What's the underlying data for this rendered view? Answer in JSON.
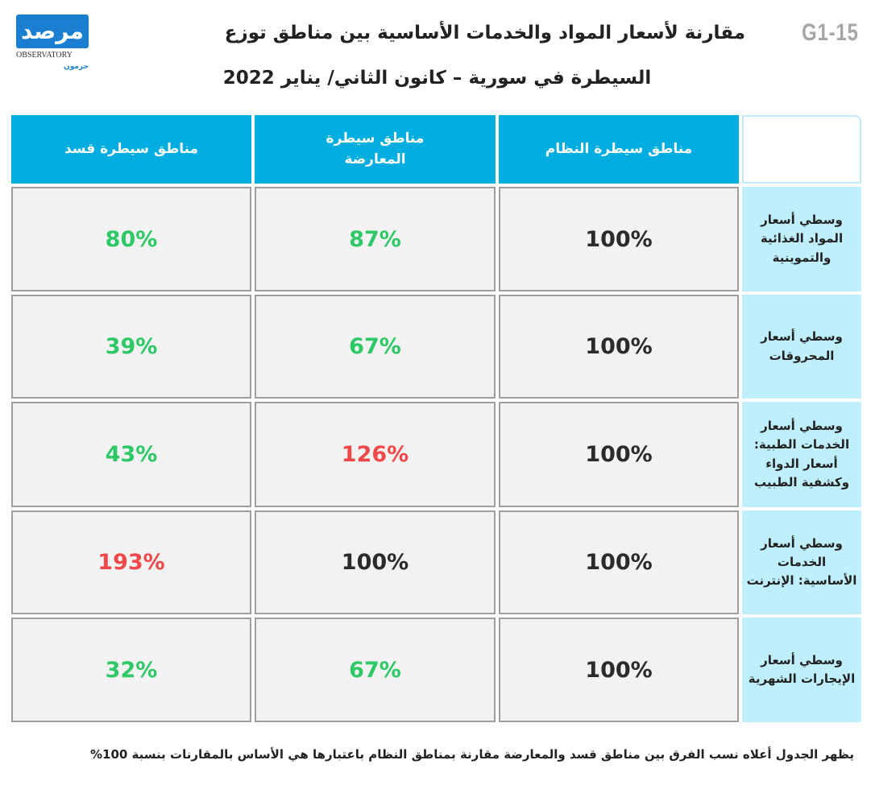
{
  "code": "G1-15",
  "title_line1": "مقارنة لأسعار المواد والخدمات الأساسية بين مناطق توزع",
  "title_line2": "السيطرة في سورية – كانون الثاني/ يناير 2022",
  "logo": {
    "arabic": "مرصد",
    "english": "OBSERVATORY",
    "sub": "حرمون"
  },
  "colors": {
    "header": "#00ade0",
    "row_label": "#bfeefc",
    "lower": "#2ec866",
    "higher": "#f04848"
  },
  "table": {
    "headers": [
      "مناطق سيطرة النظام",
      "مناطق سيطرة المعارضة",
      "مناطق سيطرة قسد"
    ],
    "rows": [
      {
        "label": "وسطي أسعار المواد الغذائية والتموينية",
        "regime": "100%",
        "opposition": "87%",
        "opposition_class": "green",
        "sdf": "80%",
        "sdf_class": "green"
      },
      {
        "label": "وسطي أسعار المحروقات",
        "regime": "100%",
        "opposition": "67%",
        "opposition_class": "green",
        "sdf": "39%",
        "sdf_class": "green"
      },
      {
        "label": "وسطي أسعار الخدمات الطبية: أسعار الدواء وكشفية الطبيب",
        "regime": "100%",
        "opposition": "126%",
        "opposition_class": "red",
        "sdf": "43%",
        "sdf_class": "green"
      },
      {
        "label": "وسطي أسعار الخدمات الأساسية: الإنترنت",
        "regime": "100%",
        "opposition": "100%",
        "opposition_class": "",
        "sdf": "193%",
        "sdf_class": "red"
      },
      {
        "label": "وسطي أسعار الإيجارات الشهرية",
        "regime": "100%",
        "opposition": "67%",
        "opposition_class": "green",
        "sdf": "32%",
        "sdf_class": "green"
      }
    ]
  },
  "footnote": "يظهر الجدول أعلاه نسب الفرق بين مناطق قسد والمعارضة مقارنة بمناطق النظام باعتبارها هي الأساس بالمقارنات بنسبة 100%"
}
